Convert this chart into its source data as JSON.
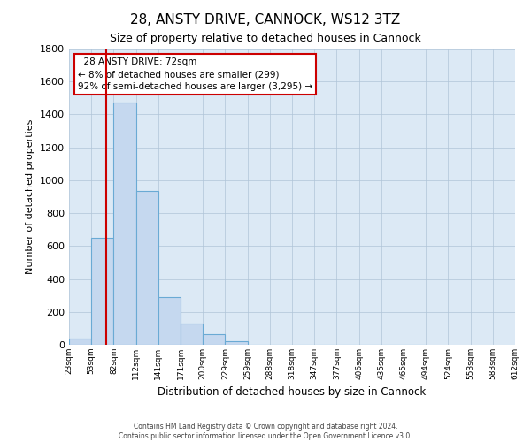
{
  "title": "28, ANSTY DRIVE, CANNOCK, WS12 3TZ",
  "subtitle": "Size of property relative to detached houses in Cannock",
  "xlabel": "Distribution of detached houses by size in Cannock",
  "ylabel": "Number of detached properties",
  "bar_values": [
    35,
    650,
    1470,
    935,
    290,
    130,
    65,
    20,
    0,
    0,
    0,
    0,
    0,
    0,
    0,
    0
  ],
  "bin_edges_idx": [
    0,
    1,
    2,
    3,
    4,
    5,
    6,
    7,
    8,
    9,
    10,
    11,
    12,
    13,
    14,
    15,
    16
  ],
  "bin_labels": [
    "23sqm",
    "53sqm",
    "82sqm",
    "112sqm",
    "141sqm",
    "171sqm",
    "200sqm",
    "229sqm",
    "259sqm",
    "288sqm",
    "318sqm",
    "347sqm",
    "377sqm",
    "406sqm",
    "435sqm",
    "465sqm",
    "494sqm",
    "524sqm",
    "553sqm",
    "583sqm",
    "612sqm"
  ],
  "bar_color": "#c5d8ef",
  "bar_edge_color": "#6aaad4",
  "background_color": "#ffffff",
  "plot_bg_color": "#dce9f5",
  "grid_color": "#b0c4d8",
  "vline_position": 1.97,
  "vline_color": "#cc0000",
  "ylim": [
    0,
    1800
  ],
  "yticks": [
    0,
    200,
    400,
    600,
    800,
    1000,
    1200,
    1400,
    1600,
    1800
  ],
  "annotation_title": "28 ANSTY DRIVE: 72sqm",
  "annotation_line1": "← 8% of detached houses are smaller (299)",
  "annotation_line2": "92% of semi-detached houses are larger (3,295) →",
  "annotation_box_color": "#ffffff",
  "annotation_box_edge": "#cc0000",
  "footer_line1": "Contains HM Land Registry data © Crown copyright and database right 2024.",
  "footer_line2": "Contains public sector information licensed under the Open Government Licence v3.0.",
  "num_bins": 16,
  "num_labels": 21
}
